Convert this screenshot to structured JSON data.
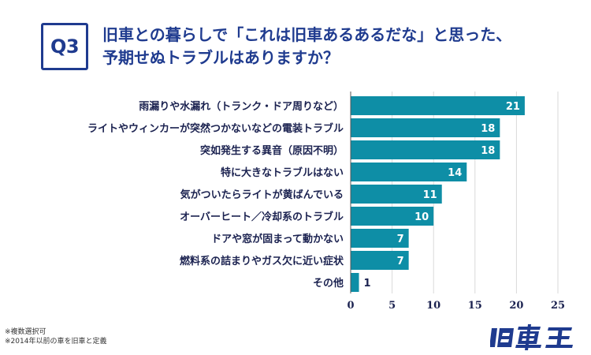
{
  "header": {
    "question_badge": "Q3",
    "title_line1": "旧車との暮らしで「これは旧車あるあるだな」と思った、",
    "title_line2": "予期せぬトラブルはありますか？"
  },
  "footnotes": {
    "line1": "※複数選択可",
    "line2": "※2014年以前の車を旧車と定義"
  },
  "logo": {
    "text": "旧車王"
  },
  "colors": {
    "bar": "#0e8ea6",
    "accent": "#1f3b8f",
    "grid": "#d9d9d9"
  },
  "chart_data": {
    "type": "bar",
    "orientation": "horizontal",
    "categories": [
      "雨漏りや水漏れ（トランク・ドア周りなど）",
      "ライトやウィンカーが突然つかないなどの電装トラブル",
      "突如発生する異音（原因不明）",
      "特に大きなトラブルはない",
      "気がついたらライトが黄ばんでいる",
      "オーバーヒート／冷却系のトラブル",
      "ドアや窓が固まって動かない",
      "燃料系の詰まりやガス欠に近い症状",
      "その他"
    ],
    "values": [
      21,
      18,
      18,
      14,
      11,
      10,
      7,
      7,
      1
    ],
    "xlim": [
      0,
      25
    ],
    "xticks": [
      0,
      5,
      10,
      15,
      20,
      25
    ],
    "grid": true
  }
}
